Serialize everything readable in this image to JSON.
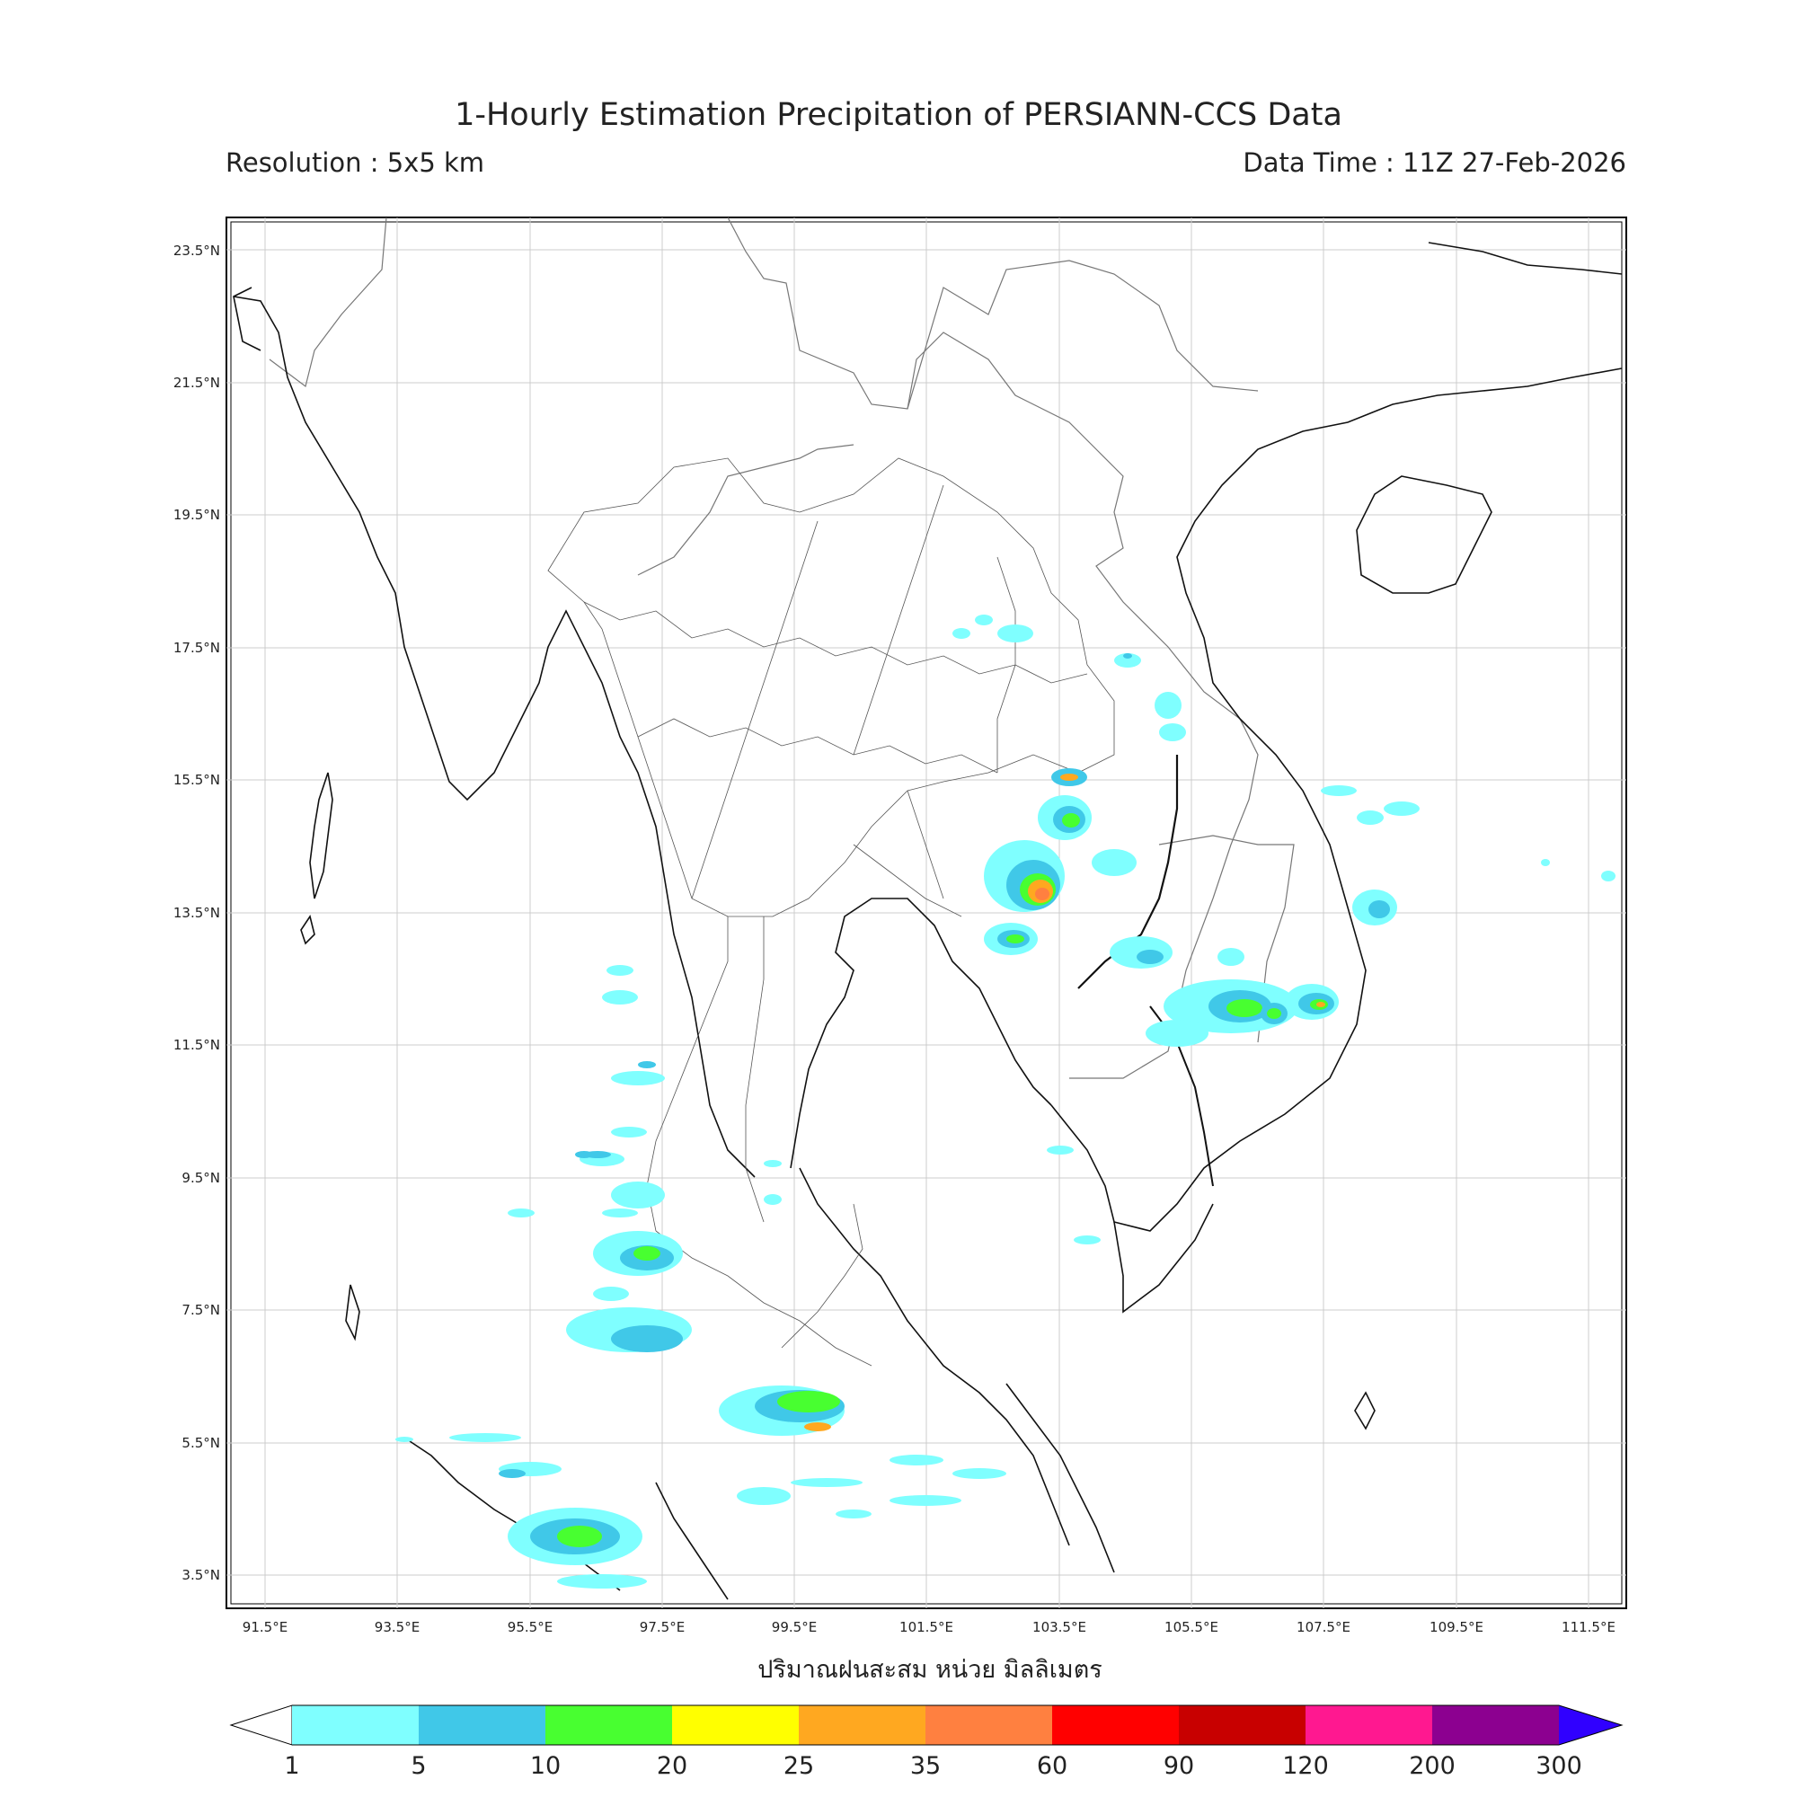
{
  "title": "1-Hourly Estimation Precipitation of PERSIANN-CCS Data",
  "resolution": "Resolution : 5x5 km",
  "data_time": "Data Time : 11Z 27-Feb-2026",
  "unit_label": "ปริมาณฝนสะสม หน่วย มิลลิเมตร",
  "lat_labels": [
    "23.5°N",
    "21.5°N",
    "19.5°N",
    "17.5°N",
    "15.5°N",
    "13.5°N",
    "11.5°N",
    "9.5°N",
    "7.5°N",
    "5.5°N",
    "3.5°N"
  ],
  "lon_labels": [
    "91.5°E",
    "93.5°E",
    "95.5°E",
    "97.5°E",
    "99.5°E",
    "101.5°E",
    "103.5°E",
    "105.5°E",
    "107.5°E",
    "109.5°E",
    "111.5°E"
  ],
  "colorbar": {
    "ticks": [
      "1",
      "5",
      "10",
      "20",
      "25",
      "35",
      "60",
      "90",
      "120",
      "200",
      "300"
    ],
    "colors": [
      "#7fffff",
      "#40c8e8",
      "#48ff30",
      "#ffff00",
      "#ffa820",
      "#ff8040",
      "#ff0000",
      "#c80000",
      "#ff1890",
      "#8c0090",
      "#3000ff"
    ]
  }
}
